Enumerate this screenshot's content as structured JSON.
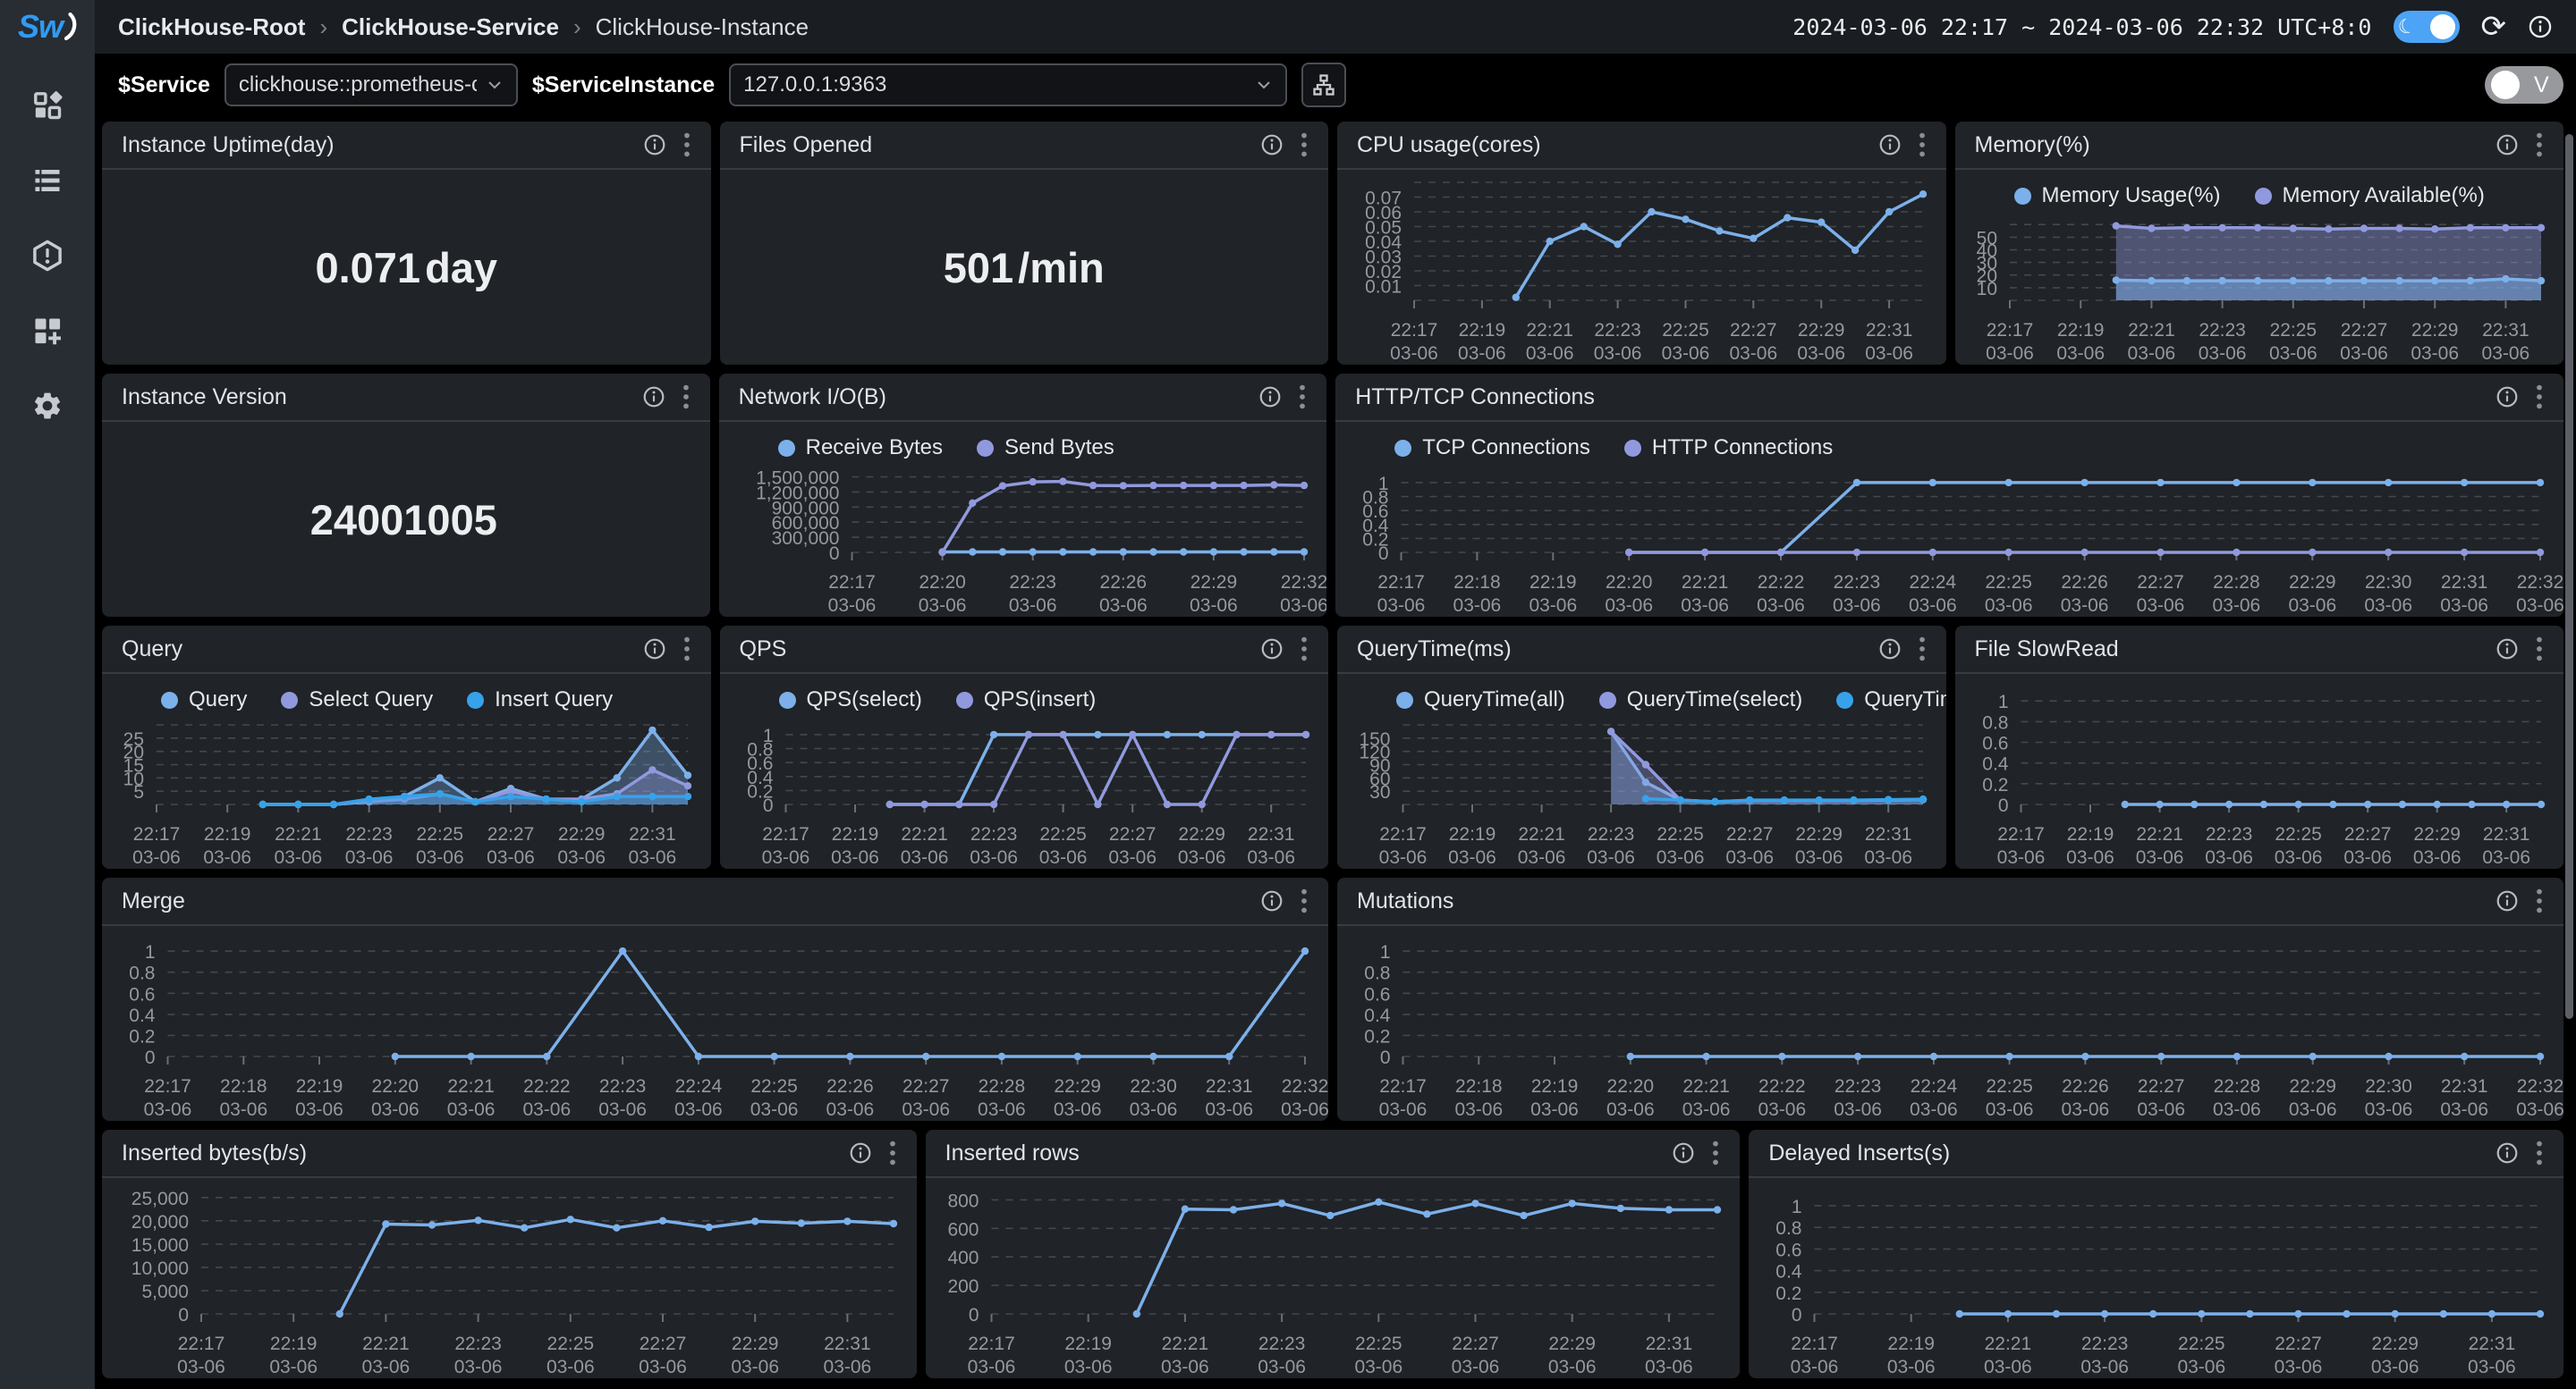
{
  "topbar": {
    "logo_text": "Sw",
    "breadcrumb": [
      "ClickHouse-Root",
      "ClickHouse-Service",
      "ClickHouse-Instance"
    ],
    "breadcrumb_separator": "›",
    "time_range": "2024-03-06 22:17 ~ 2024-03-06 22:32 UTC+8:0"
  },
  "filterbar": {
    "service_label": "$Service",
    "service_value": "clickhouse::prometheus-clickho",
    "instance_label": "$ServiceInstance",
    "instance_value": "127.0.0.1:9363",
    "view_toggle_label": "V"
  },
  "colors": {
    "blue": "#7cb0ea",
    "purple": "#9199de",
    "bright_blue": "#36a2ea"
  },
  "timeline": {
    "date": "03-06",
    "times": [
      "22:17",
      "22:18",
      "22:19",
      "22:20",
      "22:21",
      "22:22",
      "22:23",
      "22:24",
      "22:25",
      "22:26",
      "22:27",
      "22:28",
      "22:29",
      "22:30",
      "22:31",
      "22:32"
    ]
  },
  "cards": {
    "uptime": {
      "title": "Instance Uptime(day)",
      "value": "0.071",
      "unit": "day"
    },
    "files": {
      "title": "Files Opened",
      "value": "501",
      "unit": "/min"
    },
    "version": {
      "title": "Instance Version",
      "value": "24001005",
      "unit": ""
    },
    "cpu": {
      "title": "CPU usage(cores)",
      "chart": {
        "type": "line",
        "legend": false,
        "tick_step": 2,
        "y_ticks": [
          0.01,
          0.02,
          0.03,
          0.04,
          0.05,
          0.06,
          0.07
        ],
        "y_max": 0.08,
        "grid_extra": 0.08,
        "series": [
          {
            "name": "CPU usage",
            "color": "#7cb0ea",
            "values": [
              null,
              null,
              null,
              0.002,
              0.04,
              0.05,
              0.038,
              0.06,
              0.055,
              0.047,
              0.042,
              0.056,
              0.053,
              0.034,
              0.06,
              0.072
            ]
          }
        ]
      }
    },
    "memory": {
      "title": "Memory(%)",
      "chart": {
        "type": "area",
        "legend": true,
        "draw_reverse": true,
        "tick_step": 2,
        "y_ticks": [
          10,
          20,
          30,
          40,
          50
        ],
        "y_max": 63,
        "grid_extra": 60,
        "series": [
          {
            "name": "Memory Usage(%)",
            "color": "#7cb0ea",
            "fill": 0.5,
            "values": [
              null,
              null,
              null,
              16,
              15.5,
              15.5,
              15.5,
              15.5,
              15.5,
              15.5,
              15.5,
              15.5,
              15.5,
              15.5,
              17,
              15.5
            ]
          },
          {
            "name": "Memory Available(%)",
            "color": "#9199de",
            "fill": 0.42,
            "values": [
              null,
              null,
              null,
              59,
              57,
              57.5,
              57.5,
              57.5,
              57,
              56.5,
              57,
              57,
              56.5,
              57.5,
              57.5,
              57.5
            ]
          }
        ]
      }
    },
    "network": {
      "title": "Network I/O(B)",
      "chart": {
        "type": "line",
        "legend": true,
        "tick_step": 3,
        "y_ticks": [
          0,
          300000,
          600000,
          900000,
          1200000,
          1500000
        ],
        "y_max": 1580000,
        "series": [
          {
            "name": "Receive Bytes",
            "color": "#7cb0ea",
            "values": [
              null,
              null,
              null,
              8000,
              8000,
              8000,
              8000,
              8000,
              8000,
              8000,
              8000,
              8000,
              8000,
              8000,
              8000,
              8000
            ]
          },
          {
            "name": "Send Bytes",
            "color": "#9199de",
            "values": [
              null,
              null,
              null,
              0,
              980000,
              1320000,
              1400000,
              1410000,
              1330000,
              1325000,
              1330000,
              1330000,
              1330000,
              1330000,
              1340000,
              1330000
            ]
          }
        ]
      }
    },
    "connections": {
      "title": "HTTP/TCP Connections",
      "chart": {
        "type": "line",
        "legend": true,
        "tick_step": 1,
        "y_ticks": [
          0,
          0.2,
          0.4,
          0.6,
          0.8,
          1
        ],
        "y_max": 1.14,
        "series": [
          {
            "name": "TCP Connections",
            "color": "#7cb0ea",
            "values": [
              null,
              null,
              null,
              0,
              0,
              0,
              1,
              1,
              1,
              1,
              1,
              1,
              1,
              1,
              1,
              1
            ]
          },
          {
            "name": "HTTP Connections",
            "color": "#9199de",
            "values": [
              null,
              null,
              null,
              0,
              0,
              0,
              0,
              0,
              0,
              0,
              0,
              0,
              0,
              0,
              0,
              0
            ]
          }
        ]
      }
    },
    "query": {
      "title": "Query",
      "chart": {
        "type": "area",
        "legend": true,
        "tick_step": 2,
        "y_ticks": [
          5,
          10,
          15,
          20,
          25
        ],
        "y_max": 30,
        "grid_extra": 30,
        "series": [
          {
            "name": "Query",
            "color": "#7cb0ea",
            "fill": 0.32,
            "values": [
              null,
              null,
              null,
              0,
              0,
              0,
              1,
              3,
              10,
              1,
              6,
              2,
              2,
              10,
              28,
              11
            ]
          },
          {
            "name": "Select Query",
            "color": "#9199de",
            "fill": 0.32,
            "values": [
              null,
              null,
              null,
              0,
              0,
              0,
              1,
              2,
              4,
              1,
              5,
              2,
              2,
              4,
              13,
              7
            ]
          },
          {
            "name": "Insert Query",
            "color": "#36a2ea",
            "fill": 0.4,
            "values": [
              null,
              null,
              null,
              0,
              0,
              0,
              2,
              3,
              4,
              1,
              3,
              2,
              1,
              3,
              3,
              3
            ]
          }
        ]
      }
    },
    "qps": {
      "title": "QPS",
      "chart": {
        "type": "line",
        "legend": true,
        "tick_step": 2,
        "y_ticks": [
          0,
          0.2,
          0.4,
          0.6,
          0.8,
          1
        ],
        "y_max": 1.14,
        "series": [
          {
            "name": "QPS(select)",
            "color": "#7cb0ea",
            "values": [
              null,
              null,
              null,
              0,
              0,
              0,
              1,
              1,
              1,
              1,
              1,
              1,
              1,
              1,
              1,
              1
            ]
          },
          {
            "name": "QPS(insert)",
            "color": "#9199de",
            "values": [
              null,
              null,
              null,
              0,
              0,
              0,
              0,
              1,
              1,
              0,
              1,
              0,
              0,
              1,
              1,
              1
            ]
          }
        ]
      }
    },
    "querytime": {
      "title": "QueryTime(ms)",
      "chart": {
        "type": "area",
        "legend": true,
        "tick_step": 2,
        "y_ticks": [
          30,
          60,
          90,
          120,
          150
        ],
        "y_max": 180,
        "grid_extra": 180,
        "series": [
          {
            "name": "QueryTime(all)",
            "color": "#7cb0ea",
            "fill": 0.35,
            "values": [
              null,
              null,
              null,
              null,
              null,
              null,
              165,
              50,
              10,
              6,
              9,
              9,
              9,
              9,
              10,
              11
            ]
          },
          {
            "name": "QueryTime(select)",
            "color": "#9199de",
            "fill": 0.35,
            "values": [
              null,
              null,
              null,
              null,
              null,
              null,
              165,
              90,
              10,
              6,
              9,
              9,
              9,
              9,
              10,
              11
            ]
          },
          {
            "name": "QueryTime(insert)",
            "color": "#36a2ea",
            "fill": 0.15,
            "values": [
              null,
              null,
              null,
              null,
              null,
              null,
              null,
              13,
              10,
              6,
              10,
              10,
              10,
              10,
              11,
              12
            ]
          }
        ]
      }
    },
    "fileslowread": {
      "title": "File SlowRead",
      "chart": {
        "type": "line",
        "legend": false,
        "tick_step": 2,
        "y_ticks": [
          0,
          0.2,
          0.4,
          0.6,
          0.8,
          1
        ],
        "y_max": 1.14,
        "series": [
          {
            "name": "File SlowRead",
            "color": "#7cb0ea",
            "values": [
              null,
              null,
              null,
              0,
              0,
              0,
              0,
              0,
              0,
              0,
              0,
              0,
              0,
              0,
              0,
              0
            ]
          }
        ]
      }
    },
    "merge": {
      "title": "Merge",
      "chart": {
        "type": "line",
        "legend": false,
        "tick_step": 1,
        "y_ticks": [
          0,
          0.2,
          0.4,
          0.6,
          0.8,
          1
        ],
        "y_max": 1.12,
        "series": [
          {
            "name": "Merge",
            "color": "#7cb0ea",
            "values": [
              null,
              null,
              null,
              0,
              0,
              0,
              1,
              0,
              0,
              0,
              0,
              0,
              0,
              0,
              0,
              1
            ]
          }
        ]
      }
    },
    "mutations": {
      "title": "Mutations",
      "chart": {
        "type": "line",
        "legend": false,
        "tick_step": 1,
        "y_ticks": [
          0,
          0.2,
          0.4,
          0.6,
          0.8,
          1
        ],
        "y_max": 1.12,
        "series": [
          {
            "name": "Mutations",
            "color": "#7cb0ea",
            "values": [
              null,
              null,
              null,
              0,
              0,
              0,
              0,
              0,
              0,
              0,
              0,
              0,
              0,
              0,
              0,
              0
            ]
          }
        ]
      }
    },
    "inserted_bytes": {
      "title": "Inserted bytes(b/s)",
      "chart": {
        "type": "line",
        "legend": false,
        "tick_step": 2,
        "y_ticks": [
          0,
          5000,
          10000,
          15000,
          20000,
          25000
        ],
        "y_max": 26500,
        "series": [
          {
            "name": "Inserted bytes",
            "color": "#7cb0ea",
            "values": [
              null,
              null,
              null,
              0,
              19300,
              19100,
              20100,
              18500,
              20300,
              18500,
              20000,
              18600,
              19900,
              19500,
              19900,
              19400
            ]
          }
        ]
      }
    },
    "inserted_rows": {
      "title": "Inserted rows",
      "chart": {
        "type": "line",
        "legend": false,
        "tick_step": 2,
        "y_ticks": [
          0,
          200,
          400,
          600,
          800
        ],
        "y_max": 865,
        "series": [
          {
            "name": "Inserted rows",
            "color": "#7cb0ea",
            "values": [
              null,
              null,
              null,
              0,
              735,
              730,
              775,
              690,
              785,
              700,
              775,
              690,
              775,
              740,
              730,
              730
            ]
          }
        ]
      }
    },
    "delayed_inserts": {
      "title": "Delayed Inserts(s)",
      "chart": {
        "type": "line",
        "legend": false,
        "tick_step": 2,
        "y_ticks": [
          0,
          0.2,
          0.4,
          0.6,
          0.8,
          1
        ],
        "y_max": 1.14,
        "series": [
          {
            "name": "Delayed Inserts",
            "color": "#7cb0ea",
            "values": [
              null,
              null,
              null,
              0,
              0,
              0,
              0,
              0,
              0,
              0,
              0,
              0,
              0,
              0,
              0,
              0
            ]
          }
        ]
      }
    }
  }
}
